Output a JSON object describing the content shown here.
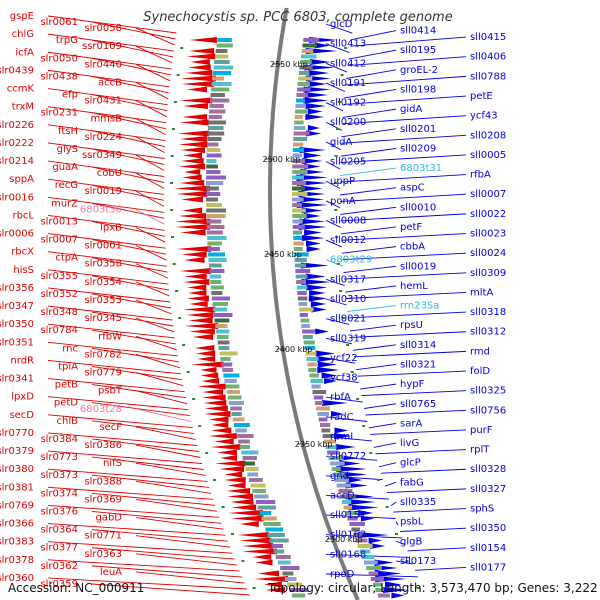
{
  "title": "Synechocystis sp. PCC 6803, complete genome",
  "footer": {
    "accession": "Accession: NC_000911",
    "topology": "Topology: circular; Length: 3,573,470 bp; Genes: 3,222"
  },
  "colors": {
    "reverse": "#e00000",
    "forward": "#0000e0",
    "rna_reverse": "#f078a0",
    "rna_forward": "#30b8e0",
    "backbone": "#7a7a7a",
    "tick": "#2a8a2a"
  },
  "kbp_ticks": [
    "2550 kbp",
    "2500 kbp",
    "2450 kbp",
    "2400 kbp",
    "2350 kbp",
    "2300 kbp"
  ],
  "left_labels": [
    {
      "text": "gspE",
      "type": "gene"
    },
    {
      "text": "slr0061",
      "type": "gene"
    },
    {
      "text": "slr0058",
      "type": "gene"
    },
    {
      "text": "chlG",
      "type": "gene"
    },
    {
      "text": "trpG",
      "type": "gene"
    },
    {
      "text": "ssr0109",
      "type": "gene"
    },
    {
      "text": "icfA",
      "type": "gene"
    },
    {
      "text": "slr0050",
      "type": "gene"
    },
    {
      "text": "slr0440",
      "type": "gene"
    },
    {
      "text": "slr0439",
      "type": "gene"
    },
    {
      "text": "slr0438",
      "type": "gene"
    },
    {
      "text": "accB",
      "type": "gene"
    },
    {
      "text": "ccmK",
      "type": "gene"
    },
    {
      "text": "efp",
      "type": "gene"
    },
    {
      "text": "slr0431",
      "type": "gene"
    },
    {
      "text": "trxM",
      "type": "gene"
    },
    {
      "text": "slr0231",
      "type": "gene"
    },
    {
      "text": "mmsB",
      "type": "gene"
    },
    {
      "text": "slr0226",
      "type": "gene"
    },
    {
      "text": "ftsH",
      "type": "gene"
    },
    {
      "text": "slr0224",
      "type": "gene"
    },
    {
      "text": "slr0222",
      "type": "gene"
    },
    {
      "text": "glyS",
      "type": "gene"
    },
    {
      "text": "ssr0349",
      "type": "gene"
    },
    {
      "text": "slr0214",
      "type": "gene"
    },
    {
      "text": "guaA",
      "type": "gene"
    },
    {
      "text": "cobU",
      "type": "gene"
    },
    {
      "text": "sppA",
      "type": "gene"
    },
    {
      "text": "recG",
      "type": "gene"
    },
    {
      "text": "slr0019",
      "type": "gene"
    },
    {
      "text": "slr0016",
      "type": "gene"
    },
    {
      "text": "murZ",
      "type": "gene"
    },
    {
      "text": "6803t30",
      "type": "rna"
    },
    {
      "text": "rbcL",
      "type": "gene"
    },
    {
      "text": "slr0013",
      "type": "gene"
    },
    {
      "text": "lpxB",
      "type": "gene"
    },
    {
      "text": "slr0006",
      "type": "gene"
    },
    {
      "text": "slr0007",
      "type": "gene"
    },
    {
      "text": "slr0001",
      "type": "gene"
    },
    {
      "text": "rbcX",
      "type": "gene"
    },
    {
      "text": "ctpA",
      "type": "gene"
    },
    {
      "text": "slr0358",
      "type": "gene"
    },
    {
      "text": "hisS",
      "type": "gene"
    },
    {
      "text": "slr0355",
      "type": "gene"
    },
    {
      "text": "slr0354",
      "type": "gene"
    },
    {
      "text": "slr0356",
      "type": "gene"
    },
    {
      "text": "slr0352",
      "type": "gene"
    },
    {
      "text": "slr0353",
      "type": "gene"
    },
    {
      "text": "slr0347",
      "type": "gene"
    },
    {
      "text": "slr0348",
      "type": "gene"
    },
    {
      "text": "slr0345",
      "type": "gene"
    },
    {
      "text": "slr0350",
      "type": "gene"
    },
    {
      "text": "slr0784",
      "type": "gene"
    },
    {
      "text": "rfbW",
      "type": "gene"
    },
    {
      "text": "slr0351",
      "type": "gene"
    },
    {
      "text": "rnc",
      "type": "gene"
    },
    {
      "text": "slr0782",
      "type": "gene"
    },
    {
      "text": "nrdR",
      "type": "gene"
    },
    {
      "text": "tpiA",
      "type": "gene"
    },
    {
      "text": "slr0779",
      "type": "gene"
    },
    {
      "text": "slr0341",
      "type": "gene"
    },
    {
      "text": "petB",
      "type": "gene"
    },
    {
      "text": "psbT",
      "type": "gene"
    },
    {
      "text": "lpxD",
      "type": "gene"
    },
    {
      "text": "petD",
      "type": "gene"
    },
    {
      "text": "6803t28",
      "type": "rna"
    },
    {
      "text": "secD",
      "type": "gene"
    },
    {
      "text": "chlB",
      "type": "gene"
    },
    {
      "text": "secF",
      "type": "gene"
    },
    {
      "text": "slr0770",
      "type": "gene"
    },
    {
      "text": "slr0384",
      "type": "gene"
    },
    {
      "text": "slr0386",
      "type": "gene"
    },
    {
      "text": "slr0379",
      "type": "gene"
    },
    {
      "text": "slr0773",
      "type": "gene"
    },
    {
      "text": "nifS",
      "type": "gene"
    },
    {
      "text": "slr0380",
      "type": "gene"
    },
    {
      "text": "slr0373",
      "type": "gene"
    },
    {
      "text": "slr0388",
      "type": "gene"
    },
    {
      "text": "slr0381",
      "type": "gene"
    },
    {
      "text": "slr0374",
      "type": "gene"
    },
    {
      "text": "slr0369",
      "type": "gene"
    },
    {
      "text": "slr0769",
      "type": "gene"
    },
    {
      "text": "slr0376",
      "type": "gene"
    },
    {
      "text": "gabD",
      "type": "gene"
    },
    {
      "text": "slr0366",
      "type": "gene"
    },
    {
      "text": "slr0364",
      "type": "gene"
    },
    {
      "text": "slr0771",
      "type": "gene"
    },
    {
      "text": "slr0383",
      "type": "gene"
    },
    {
      "text": "slr0377",
      "type": "gene"
    },
    {
      "text": "slr0363",
      "type": "gene"
    },
    {
      "text": "slr0378",
      "type": "gene"
    },
    {
      "text": "slr0362",
      "type": "gene"
    },
    {
      "text": "leuA",
      "type": "gene"
    },
    {
      "text": "slr0360",
      "type": "gene"
    },
    {
      "text": "slr0359",
      "type": "gene"
    }
  ],
  "right_labels": [
    {
      "text": "glcD",
      "type": "gene"
    },
    {
      "text": "sll0414",
      "type": "gene"
    },
    {
      "text": "sll0415",
      "type": "gene"
    },
    {
      "text": "sll0413",
      "type": "gene"
    },
    {
      "text": "sll0195",
      "type": "gene"
    },
    {
      "text": "sll0406",
      "type": "gene"
    },
    {
      "text": "sll0412",
      "type": "gene"
    },
    {
      "text": "groEL-2",
      "type": "gene"
    },
    {
      "text": "sll0788",
      "type": "gene"
    },
    {
      "text": "sll0191",
      "type": "gene"
    },
    {
      "text": "sll0198",
      "type": "gene"
    },
    {
      "text": "petE",
      "type": "gene"
    },
    {
      "text": "sll0192",
      "type": "gene"
    },
    {
      "text": "gidA",
      "type": "gene"
    },
    {
      "text": "ycf43",
      "type": "gene"
    },
    {
      "text": "sll0200",
      "type": "gene"
    },
    {
      "text": "sll0201",
      "type": "gene"
    },
    {
      "text": "sll0208",
      "type": "gene"
    },
    {
      "text": "gidA",
      "type": "gene"
    },
    {
      "text": "sll0209",
      "type": "gene"
    },
    {
      "text": "sll0005",
      "type": "gene"
    },
    {
      "text": "sll0205",
      "type": "gene"
    },
    {
      "text": "6803t31",
      "type": "rna"
    },
    {
      "text": "rfbA",
      "type": "gene"
    },
    {
      "text": "uppP",
      "type": "gene"
    },
    {
      "text": "aspC",
      "type": "gene"
    },
    {
      "text": "sll0007",
      "type": "gene"
    },
    {
      "text": "ponA",
      "type": "gene"
    },
    {
      "text": "sll0010",
      "type": "gene"
    },
    {
      "text": "sll0022",
      "type": "gene"
    },
    {
      "text": "sll0008",
      "type": "gene"
    },
    {
      "text": "petF",
      "type": "gene"
    },
    {
      "text": "sll0023",
      "type": "gene"
    },
    {
      "text": "sll0012",
      "type": "gene"
    },
    {
      "text": "cbbA",
      "type": "gene"
    },
    {
      "text": "sll0024",
      "type": "gene"
    },
    {
      "text": "6803t29",
      "type": "rna"
    },
    {
      "text": "sll0019",
      "type": "gene"
    },
    {
      "text": "sll0309",
      "type": "gene"
    },
    {
      "text": "sll0317",
      "type": "gene"
    },
    {
      "text": "hemL",
      "type": "gene"
    },
    {
      "text": "mltA",
      "type": "gene"
    },
    {
      "text": "sll0310",
      "type": "gene"
    },
    {
      "text": "rrn23Sa",
      "type": "rna"
    },
    {
      "text": "sll0318",
      "type": "gene"
    },
    {
      "text": "sll0021",
      "type": "gene"
    },
    {
      "text": "rpsU",
      "type": "gene"
    },
    {
      "text": "sll0312",
      "type": "gene"
    },
    {
      "text": "sll0319",
      "type": "gene"
    },
    {
      "text": "sll0314",
      "type": "gene"
    },
    {
      "text": "rmd",
      "type": "gene"
    },
    {
      "text": "ycf22",
      "type": "gene"
    },
    {
      "text": "sll0321",
      "type": "gene"
    },
    {
      "text": "folD",
      "type": "gene"
    },
    {
      "text": "ycf38",
      "type": "gene"
    },
    {
      "text": "hypF",
      "type": "gene"
    },
    {
      "text": "sll0325",
      "type": "gene"
    },
    {
      "text": "rbfA",
      "type": "gene"
    },
    {
      "text": "sll0765",
      "type": "gene"
    },
    {
      "text": "sll0756",
      "type": "gene"
    },
    {
      "text": "radC",
      "type": "gene"
    },
    {
      "text": "sarA",
      "type": "gene"
    },
    {
      "text": "purF",
      "type": "gene"
    },
    {
      "text": "rpmI",
      "type": "gene"
    },
    {
      "text": "livG",
      "type": "gene"
    },
    {
      "text": "rplT",
      "type": "gene"
    },
    {
      "text": "sll0772",
      "type": "gene"
    },
    {
      "text": "glcP",
      "type": "gene"
    },
    {
      "text": "sll0328",
      "type": "gene"
    },
    {
      "text": "gnd",
      "type": "gene"
    },
    {
      "text": "fabG",
      "type": "gene"
    },
    {
      "text": "sll0327",
      "type": "gene"
    },
    {
      "text": "accD",
      "type": "gene"
    },
    {
      "text": "sll0335",
      "type": "gene"
    },
    {
      "text": "sphS",
      "type": "gene"
    },
    {
      "text": "sll0157",
      "type": "gene"
    },
    {
      "text": "psbL",
      "type": "gene"
    },
    {
      "text": "sll0350",
      "type": "gene"
    },
    {
      "text": "sll0162",
      "type": "gene"
    },
    {
      "text": "glgB",
      "type": "gene"
    },
    {
      "text": "sll0154",
      "type": "gene"
    },
    {
      "text": "sll0168",
      "type": "gene"
    },
    {
      "text": "sll0173",
      "type": "gene"
    },
    {
      "text": "sll0177",
      "type": "gene"
    },
    {
      "text": "rpoD",
      "type": "gene"
    }
  ]
}
